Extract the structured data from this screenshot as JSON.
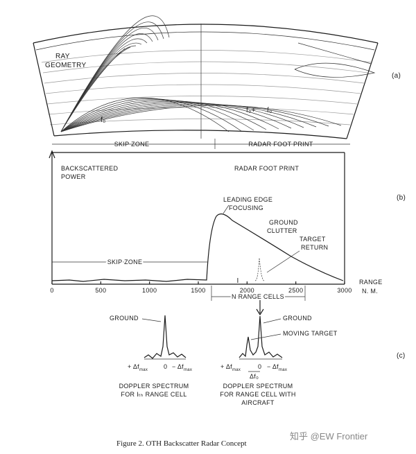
{
  "panel_a": {
    "title": [
      "RAY",
      "GEOMETRY"
    ],
    "panel_label": "(a)",
    "ray_labels": [
      "f₀",
      "f₀+",
      "f₀"
    ],
    "skip_zone": "SKIP ZONE",
    "foot_print": "RADAR FOOT PRINT"
  },
  "panel_b": {
    "y_label": [
      "BACKSCATTERED",
      "POWER"
    ],
    "foot_print": "RADAR FOOT PRINT",
    "panel_label": "(b)",
    "annotations": {
      "leading_edge": [
        "LEADING EDGE",
        "FOCUSING"
      ],
      "ground_clutter": [
        "GROUND",
        "CLUTTER"
      ],
      "target_return": [
        "TARGET",
        "RETURN"
      ],
      "skip_zone": "SKIP ZONE",
      "range_cells": "N RANGE CELLS",
      "cell_marker": "I"
    },
    "x_label": [
      "RANGE",
      "N. M."
    ],
    "xlim": [
      0,
      3000
    ],
    "xticks": [
      0,
      500,
      1000,
      1500,
      2000,
      2500,
      3000
    ]
  },
  "panel_c": {
    "panel_label": "(c)",
    "left": {
      "ground": "GROUND",
      "axis": [
        "+ Δf",
        "max",
        "0",
        "− Δf",
        "max"
      ],
      "caption": [
        "DOPPLER SPECTRUM",
        "FOR Iₜₕ RANGE CELL"
      ]
    },
    "right": {
      "ground": "GROUND",
      "moving_target": "MOVING TARGET",
      "axis": [
        "+ Δf",
        "max",
        "0",
        "− Δf",
        "max"
      ],
      "doppler_shift": "Δf₀",
      "caption": [
        "DOPPLER SPECTRUM",
        "FOR RANGE CELL WITH",
        "AIRCRAFT"
      ]
    }
  },
  "figure_caption": "Figure 2.  OTH Backscatter Radar Concept",
  "watermark": "知乎 @EW Frontier"
}
